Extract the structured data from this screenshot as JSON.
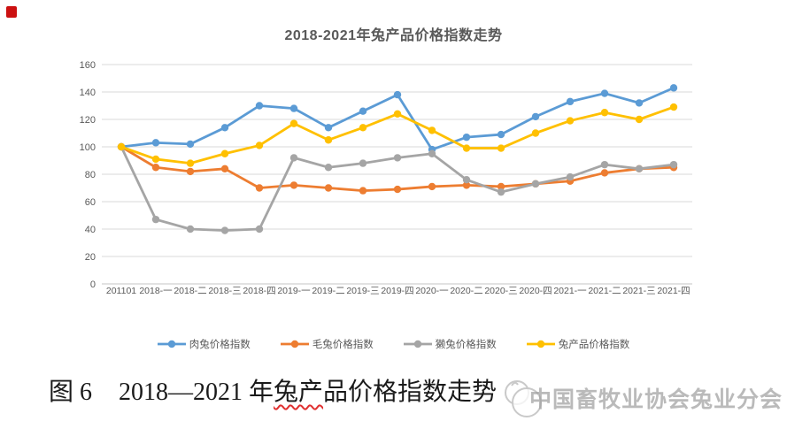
{
  "chart_data": {
    "type": "line",
    "title": "2018-2021年兔产品价格指数走势",
    "categories": [
      "201101",
      "2018-一",
      "2018-二",
      "2018-三",
      "2018-四",
      "2019-一",
      "2019-二",
      "2019-三",
      "2019-四",
      "2020-一",
      "2020-二",
      "2020-三",
      "2020-四",
      "2021-一",
      "2021-二",
      "2021-三",
      "2021-四"
    ],
    "series": [
      {
        "name": "肉兔价格指数",
        "color": "#5B9BD5",
        "values": [
          100,
          103,
          102,
          114,
          130,
          128,
          114,
          126,
          138,
          98,
          107,
          109,
          122,
          133,
          139,
          132,
          143
        ]
      },
      {
        "name": "毛兔价格指数",
        "color": "#ED7D31",
        "values": [
          100,
          85,
          82,
          84,
          70,
          72,
          70,
          68,
          69,
          71,
          72,
          71,
          73,
          75,
          81,
          84,
          85
        ]
      },
      {
        "name": "獭兔价格指数",
        "color": "#A5A5A5",
        "values": [
          100,
          47,
          40,
          39,
          40,
          92,
          85,
          88,
          92,
          95,
          76,
          67,
          73,
          78,
          87,
          84,
          87
        ]
      },
      {
        "name": "兔产品价格指数",
        "color": "#FFC000",
        "values": [
          100,
          91,
          88,
          95,
          101,
          117,
          105,
          114,
          124,
          112,
          99,
          99,
          110,
          119,
          125,
          120,
          129
        ]
      }
    ],
    "ylim": [
      0,
      160
    ],
    "yticks": [
      0,
      20,
      40,
      60,
      80,
      100,
      120,
      140,
      160
    ],
    "grid": "horizontal",
    "gridline_color": "#D9D9D9",
    "baseline_color": "#C6C6C6",
    "axis_label_color": "#595959",
    "legend_position": "bottom"
  },
  "caption": {
    "figure_label": "图 6",
    "title_before": "2018—2021 年",
    "title_underlined": "兔产",
    "title_after": "品价格指数走势"
  },
  "watermark": {
    "text": "中国畜牧业协会兔业分会"
  },
  "decorations": {
    "corner_mark_color": "#CC1111",
    "logo_outline_color": "#c9c9c9"
  }
}
